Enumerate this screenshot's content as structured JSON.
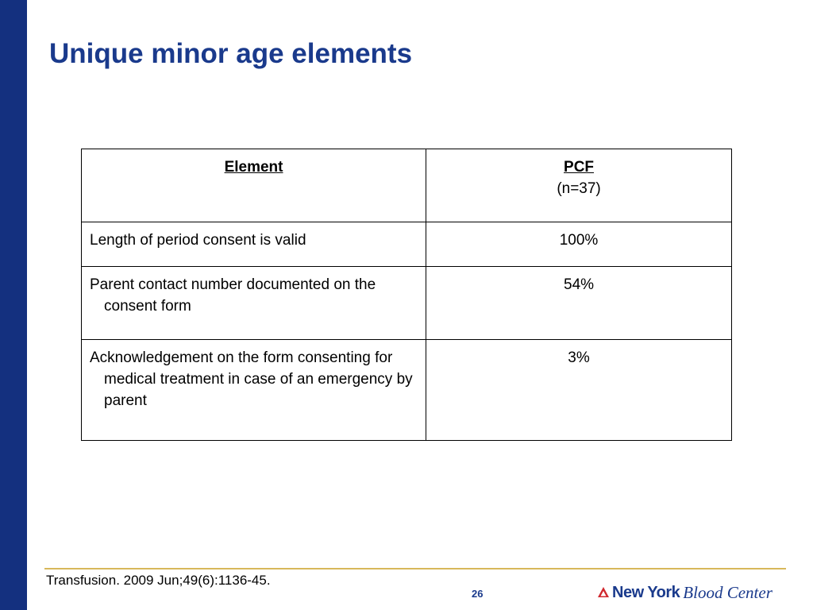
{
  "slide": {
    "title": "Unique minor age elements"
  },
  "table": {
    "headers": {
      "element": "Element",
      "pcf": "PCF",
      "pcf_sub": "(n=37)"
    },
    "rows": [
      {
        "element": "Length of period consent is valid",
        "pcf": "100%"
      },
      {
        "element": "Parent contact number documented on the consent form",
        "pcf": "54%"
      },
      {
        "element": "Acknowledgement on the form consenting for medical treatment in case of an emergency by parent",
        "pcf": "3%"
      }
    ]
  },
  "footer": {
    "citation": "Transfusion. 2009 Jun;49(6):1136-45.",
    "page_number": "26",
    "logo_bold": "New York",
    "logo_italic": "Blood Center"
  },
  "colors": {
    "side_bar": "#14307f",
    "title": "#1a3a8c",
    "rule": "#d8b85a",
    "logo_mark": "#d0282e"
  }
}
